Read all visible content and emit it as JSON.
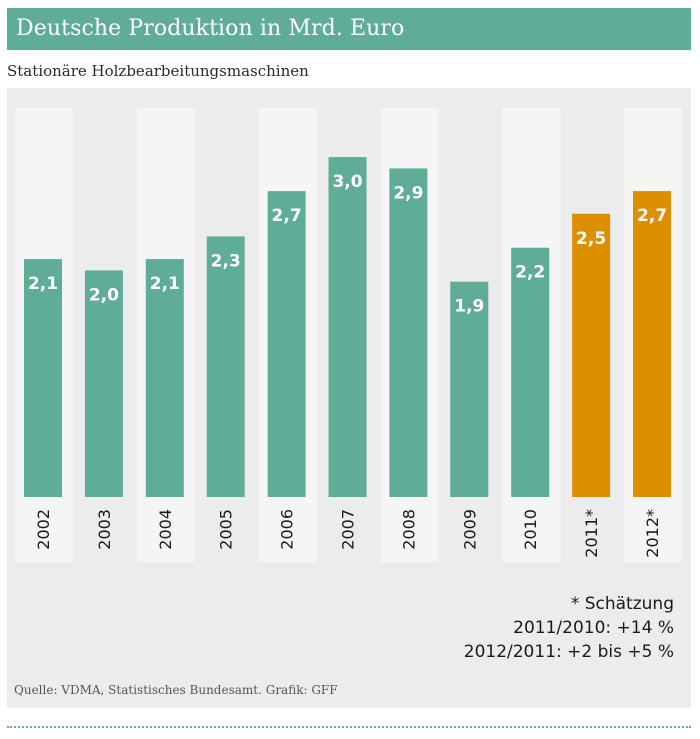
{
  "header": {
    "title": "Deutsche Produktion in Mrd. Euro",
    "subtitle": "Stationäre Holzbearbeitungsmaschinen"
  },
  "colors": {
    "actual": "#5fac98",
    "estimate": "#dd8f00",
    "panel_bg": "#ececec",
    "column_band": "#f5f5f5"
  },
  "chart_data": {
    "type": "bar",
    "title": "Deutsche Produktion in Mrd. Euro",
    "subtitle": "Stationäre Holzbearbeitungsmaschinen",
    "xlabel": "",
    "ylabel": "Mrd. Euro",
    "ylim": [
      0,
      3.0
    ],
    "grid": false,
    "categories": [
      "2002",
      "2003",
      "2004",
      "2005",
      "2006",
      "2007",
      "2008",
      "2009",
      "2010",
      "2011*",
      "2012*"
    ],
    "values": [
      2.1,
      2.0,
      2.1,
      2.3,
      2.7,
      3.0,
      2.9,
      1.9,
      2.2,
      2.5,
      2.7
    ],
    "value_labels": [
      "2,1",
      "2,0",
      "2,1",
      "2,3",
      "2,7",
      "3,0",
      "2,9",
      "1,9",
      "2,2",
      "2,5",
      "2,7"
    ],
    "estimate": [
      false,
      false,
      false,
      false,
      false,
      false,
      false,
      false,
      false,
      true,
      true
    ]
  },
  "notes": {
    "footnote": "* Schätzung",
    "change_2011": "2011/2010: +14 %",
    "change_2012": "2012/2011: +2 bis +5 %"
  },
  "source": "Quelle: VDMA, Statistisches Bundesamt. Grafik: GFF"
}
